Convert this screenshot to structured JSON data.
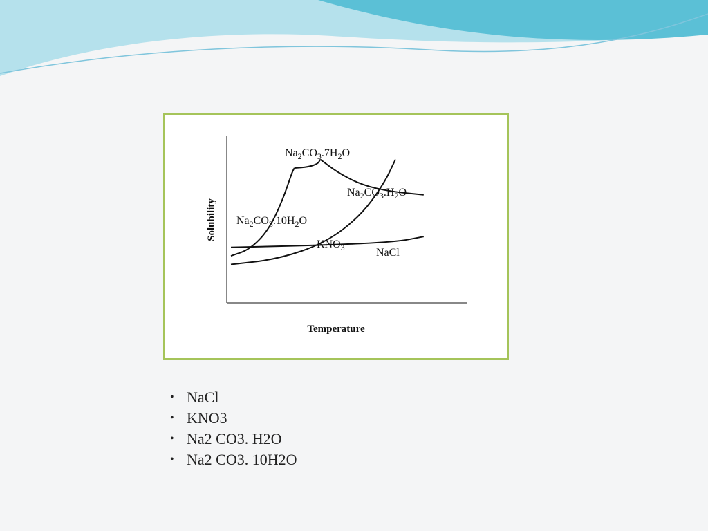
{
  "slide": {
    "background": "#f4f5f6",
    "accent_colors": [
      "#7fc5dc",
      "#5bc0d6",
      "#b5e1ec"
    ],
    "frame_color": "#a5c45a"
  },
  "chart_data": {
    "type": "line",
    "title": "",
    "xlabel": "Temperature",
    "ylabel": "Solubility",
    "axis_ticks": false,
    "grid": false,
    "legend": "none",
    "series": [
      {
        "name": "Na2CO3.10H2O",
        "label_parts": [
          [
            "Na",
            "n"
          ],
          [
            "2",
            "s"
          ],
          [
            "CO",
            "n"
          ],
          [
            "3",
            "s"
          ],
          [
            ".10H",
            "n"
          ],
          [
            "2",
            "s"
          ],
          [
            "O",
            "n"
          ]
        ],
        "x": [
          0,
          8,
          16,
          22,
          26,
          27
        ],
        "y": [
          18,
          24,
          42,
          70,
          96,
          100
        ]
      },
      {
        "name": "Na2CO3.7H2O",
        "label_parts": [
          [
            "Na",
            "n"
          ],
          [
            "2",
            "s"
          ],
          [
            "CO",
            "n"
          ],
          [
            "3",
            "s"
          ],
          [
            ".7H",
            "n"
          ],
          [
            "2",
            "s"
          ],
          [
            "O",
            "n"
          ]
        ],
        "x": [
          27,
          33,
          37,
          38
        ],
        "y": [
          100,
          101,
          104,
          108
        ]
      },
      {
        "name": "Na2CO3.H2O",
        "label_parts": [
          [
            "Na",
            "n"
          ],
          [
            "2",
            "s"
          ],
          [
            "CO",
            "n"
          ],
          [
            "3",
            "s"
          ],
          [
            ".H",
            "n"
          ],
          [
            "2",
            "s"
          ],
          [
            "O",
            "n"
          ]
        ],
        "x": [
          38,
          46,
          56,
          68,
          82
        ],
        "y": [
          108,
          95,
          84,
          78,
          75
        ]
      },
      {
        "name": "KNO3",
        "label_parts": [
          [
            "KNO",
            "n"
          ],
          [
            "3",
            "s"
          ]
        ],
        "x": [
          0,
          20,
          40,
          55,
          65,
          70
        ],
        "y": [
          10,
          15,
          30,
          55,
          85,
          108
        ]
      },
      {
        "name": "NaCl",
        "label_parts": [
          [
            "NaCl",
            "n"
          ]
        ],
        "x": [
          0,
          40,
          70,
          82
        ],
        "y": [
          26,
          28,
          31,
          36
        ]
      }
    ]
  },
  "bullets": [
    "NaCl",
    "KNO3",
    "Na2 CO3. H2O",
    "Na2 CO3. 10H2O"
  ],
  "bullet_symbol": "•"
}
